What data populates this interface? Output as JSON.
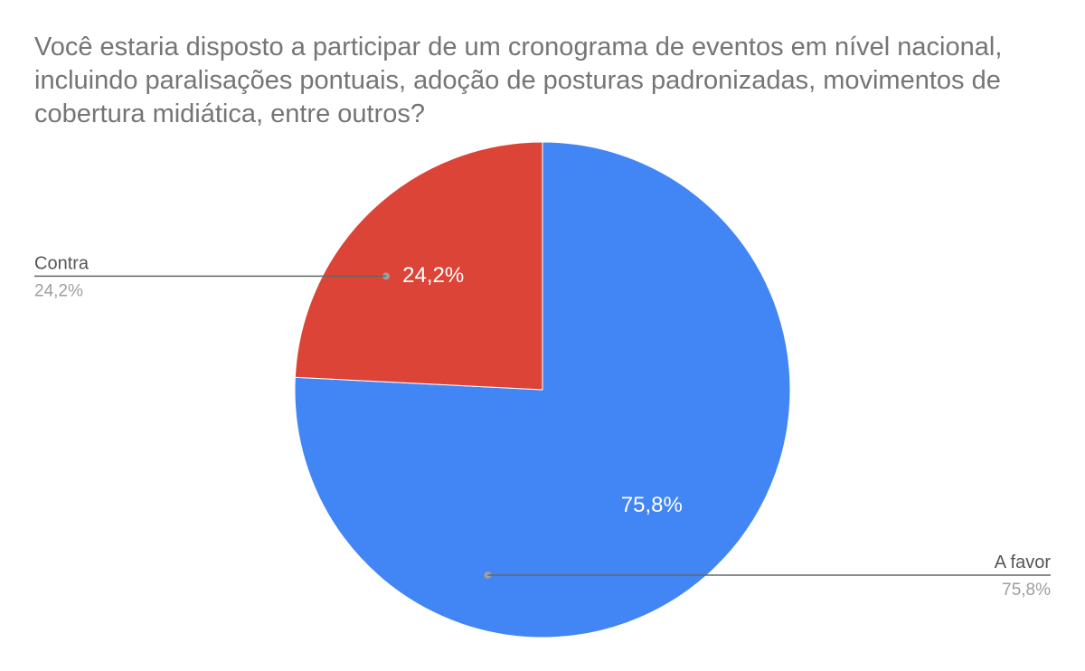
{
  "chart_data": {
    "type": "pie",
    "title": "Você estaria disposto a participar de um cronograma de eventos em nível nacional, incluindo paralisações pontuais, adoção de posturas padronizadas, movimentos de cobertura midiática, entre outros?",
    "slices": [
      {
        "label": "A favor",
        "value": 75.8,
        "display": "75,8%",
        "color": "#4285f4"
      },
      {
        "label": "Contra",
        "value": 24.2,
        "display": "24,2%",
        "color": "#db4437"
      }
    ],
    "legend_placement": "callouts"
  }
}
